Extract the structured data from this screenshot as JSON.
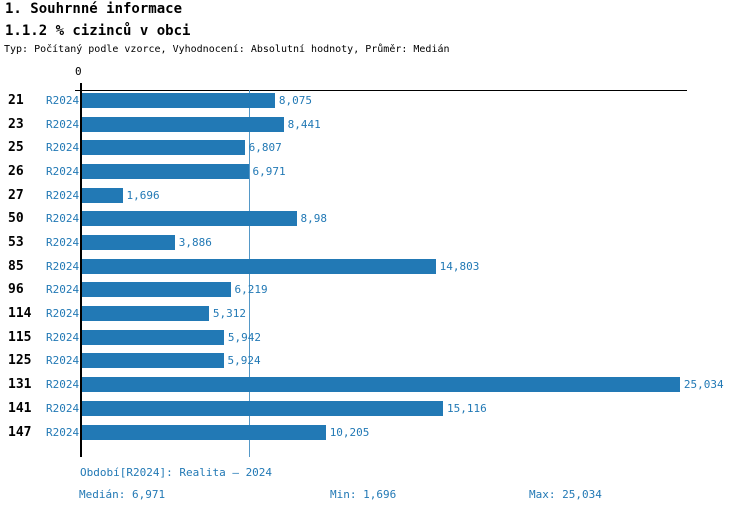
{
  "header": {
    "title": "1. Souhrnné informace",
    "subtitle": "1.1.2 % cizinců v obci",
    "meta": "Typ: Počítaný podle vzorce, Vyhodnocení: Absolutní hodnoty, Průměr: Medián"
  },
  "axis": {
    "zero_label": "0"
  },
  "chart_data": {
    "type": "bar",
    "orientation": "horizontal",
    "title": "1.1.2 % cizinců v obci",
    "categories": [
      "21",
      "23",
      "25",
      "26",
      "27",
      "50",
      "53",
      "85",
      "96",
      "114",
      "115",
      "125",
      "131",
      "141",
      "147"
    ],
    "series_label": "R2024",
    "values": [
      8.075,
      8.441,
      6.807,
      6.971,
      1.696,
      8.98,
      3.886,
      14.803,
      6.219,
      5.312,
      5.942,
      5.924,
      25.034,
      15.116,
      10.205
    ],
    "value_labels": [
      "8,075",
      "8,441",
      "6,807",
      "6,971",
      "1,696",
      "8,98",
      "3,886",
      "14,803",
      "6,219",
      "5,312",
      "5,942",
      "5,924",
      "25,034",
      "15,116",
      "10,205"
    ],
    "xlim": [
      0,
      25.33
    ],
    "median_line_value": 6.971,
    "grid": "off",
    "legend": "none",
    "bar_color": "#2279b5",
    "label_color": "#2279b5",
    "median_line_color": "#5598c7",
    "axis_color": "#000000"
  },
  "footer": {
    "period": "Období[R2024]: Realita – 2024",
    "median": "Medián: 6,971",
    "min": "Min: 1,696",
    "max": "Max: 25,034"
  }
}
